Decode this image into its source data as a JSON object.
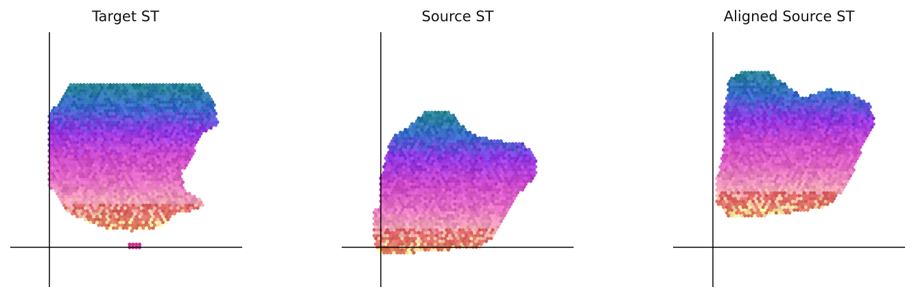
{
  "chart_data": [
    {
      "type": "scatter",
      "title": "Target ST",
      "x_axis_at": 0,
      "y_axis_at": 0,
      "show_ticks": false,
      "grid": false,
      "color_gradient": [
        "#1a7f8a",
        "#2a62c8",
        "#8a2be2",
        "#c83cc8",
        "#e060c0",
        "#f0a0b0",
        "#f5f59a",
        "#d03030"
      ],
      "tissue_outline": [
        [
          0.1,
          0.8
        ],
        [
          0.72,
          0.8
        ],
        [
          0.8,
          0.72
        ],
        [
          0.82,
          0.59
        ],
        [
          0.75,
          0.56
        ],
        [
          0.69,
          0.44
        ],
        [
          0.64,
          0.36
        ],
        [
          0.66,
          0.27
        ],
        [
          0.71,
          0.25
        ],
        [
          0.76,
          0.21
        ],
        [
          0.72,
          0.18
        ],
        [
          0.62,
          0.17
        ],
        [
          0.55,
          0.1
        ],
        [
          0.4,
          0.08
        ],
        [
          0.28,
          0.09
        ],
        [
          0.19,
          0.12
        ],
        [
          0.08,
          0.18
        ],
        [
          0.04,
          0.24
        ],
        [
          0.0,
          0.3
        ],
        [
          0.0,
          0.66
        ],
        [
          0.04,
          0.7
        ],
        [
          0.08,
          0.76
        ]
      ],
      "outlier_region": [
        [
          0.39,
          0.02
        ],
        [
          0.44,
          0.02
        ],
        [
          0.44,
          0.0
        ],
        [
          0.39,
          0.0
        ]
      ]
    },
    {
      "type": "scatter",
      "title": "Source ST",
      "x_axis_at": 0,
      "y_axis_at": 0,
      "show_ticks": false,
      "grid": false,
      "color_gradient": [
        "#1a7f8a",
        "#2a62c8",
        "#8a2be2",
        "#c83cc8",
        "#e060c0",
        "#f0a0b0",
        "#f5f59a",
        "#d03030"
      ],
      "tissue_outline": [
        [
          0.15,
          0.6
        ],
        [
          0.22,
          0.66
        ],
        [
          0.34,
          0.66
        ],
        [
          0.39,
          0.6
        ],
        [
          0.45,
          0.55
        ],
        [
          0.56,
          0.52
        ],
        [
          0.68,
          0.51
        ],
        [
          0.75,
          0.45
        ],
        [
          0.76,
          0.36
        ],
        [
          0.72,
          0.31
        ],
        [
          0.66,
          0.25
        ],
        [
          0.61,
          0.15
        ],
        [
          0.56,
          0.06
        ],
        [
          0.48,
          0.0
        ],
        [
          0.12,
          -0.03
        ],
        [
          0.0,
          -0.04
        ],
        [
          -0.03,
          0.01
        ],
        [
          -0.04,
          0.18
        ],
        [
          0.0,
          0.2
        ],
        [
          0.0,
          0.34
        ],
        [
          0.02,
          0.42
        ],
        [
          0.05,
          0.53
        ]
      ],
      "outlier_region": null
    },
    {
      "type": "scatter",
      "title": "Aligned Source ST",
      "x_axis_at": 0,
      "y_axis_at": 0,
      "show_ticks": false,
      "grid": false,
      "color_gradient": [
        "#1a7f8a",
        "#2a62c8",
        "#8a2be2",
        "#c83cc8",
        "#e060c0",
        "#f0a0b0",
        "#f5f59a",
        "#d03030"
      ],
      "tissue_outline": [
        [
          0.08,
          0.82
        ],
        [
          0.16,
          0.86
        ],
        [
          0.27,
          0.86
        ],
        [
          0.34,
          0.8
        ],
        [
          0.44,
          0.73
        ],
        [
          0.56,
          0.77
        ],
        [
          0.68,
          0.75
        ],
        [
          0.76,
          0.7
        ],
        [
          0.79,
          0.6
        ],
        [
          0.74,
          0.52
        ],
        [
          0.7,
          0.42
        ],
        [
          0.66,
          0.31
        ],
        [
          0.6,
          0.24
        ],
        [
          0.56,
          0.2
        ],
        [
          0.4,
          0.17
        ],
        [
          0.22,
          0.15
        ],
        [
          0.08,
          0.14
        ],
        [
          0.02,
          0.22
        ],
        [
          0.02,
          0.34
        ],
        [
          0.04,
          0.42
        ],
        [
          0.06,
          0.54
        ],
        [
          0.06,
          0.7
        ]
      ],
      "outlier_region": null
    }
  ]
}
